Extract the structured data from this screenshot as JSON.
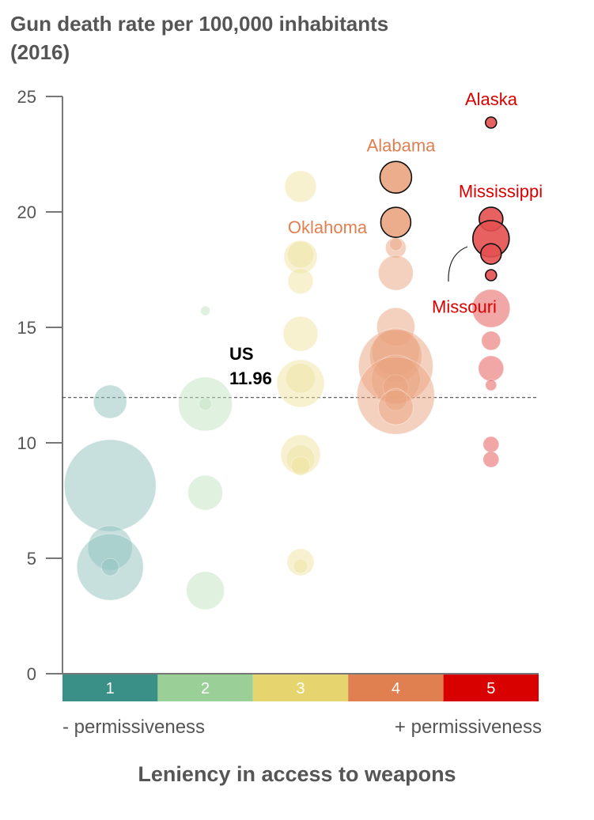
{
  "chart_data": {
    "type": "scatter",
    "title": "Gun death rate per 100,000 inhabitants (2016)",
    "xlabel": "Leniency in access to weapons",
    "ylabel": "Gun death rate per 100,000 inhabitants (2016)",
    "ylim": [
      0,
      25
    ],
    "yticks": [
      0,
      5,
      10,
      15,
      20,
      25
    ],
    "grid": false,
    "categories": [
      "1",
      "2",
      "3",
      "4",
      "5"
    ],
    "category_colors": [
      "#3a8f86",
      "#9bcf98",
      "#e6d46e",
      "#e07f50",
      "#d90000"
    ],
    "bubble_colors": [
      "#8fc1bd",
      "#c4e4c2",
      "#efe3a1",
      "#e9a47f",
      "#e55050"
    ],
    "x_left_note": "- permissiveness",
    "x_right_note": "+ permissiveness",
    "reference_line": {
      "label": "US",
      "value": 11.96,
      "value_label": "11.96"
    },
    "points": [
      {
        "category": 1,
        "y": 11.78,
        "size": 21
      },
      {
        "category": 1,
        "y": 8.15,
        "size": 58
      },
      {
        "category": 1,
        "y": 5.45,
        "size": 28
      },
      {
        "category": 1,
        "y": 4.62,
        "size": 42
      },
      {
        "category": 1,
        "y": 4.62,
        "size": 11
      },
      {
        "category": 2,
        "y": 15.72,
        "size": 6
      },
      {
        "category": 2,
        "y": 11.68,
        "size": 34
      },
      {
        "category": 2,
        "y": 11.68,
        "size": 8
      },
      {
        "category": 2,
        "y": 7.84,
        "size": 22
      },
      {
        "category": 2,
        "y": 3.6,
        "size": 24
      },
      {
        "category": 3,
        "y": 21.1,
        "size": 20
      },
      {
        "category": 3,
        "y": 18.05,
        "size": 21
      },
      {
        "category": 3,
        "y": 18.15,
        "size": 17
      },
      {
        "category": 3,
        "y": 17.0,
        "size": 16
      },
      {
        "category": 3,
        "y": 14.72,
        "size": 22
      },
      {
        "category": 3,
        "y": 12.57,
        "size": 30
      },
      {
        "category": 3,
        "y": 12.8,
        "size": 19
      },
      {
        "category": 3,
        "y": 9.49,
        "size": 25
      },
      {
        "category": 3,
        "y": 9.3,
        "size": 18
      },
      {
        "category": 3,
        "y": 9.0,
        "size": 12
      },
      {
        "category": 3,
        "y": 4.83,
        "size": 17
      },
      {
        "category": 3,
        "y": 4.66,
        "size": 9
      },
      {
        "category": 4,
        "y": 21.5,
        "size": 20,
        "highlight": true,
        "label": "Alabama"
      },
      {
        "category": 4,
        "y": 19.55,
        "size": 19,
        "highlight": true,
        "label": "Oklahoma"
      },
      {
        "category": 4,
        "y": 18.45,
        "size": 13
      },
      {
        "category": 4,
        "y": 18.6,
        "size": 8
      },
      {
        "category": 4,
        "y": 17.36,
        "size": 22
      },
      {
        "category": 4,
        "y": 15.03,
        "size": 24
      },
      {
        "category": 4,
        "y": 13.94,
        "size": 30
      },
      {
        "category": 4,
        "y": 13.77,
        "size": 33
      },
      {
        "category": 4,
        "y": 13.32,
        "size": 47
      },
      {
        "category": 4,
        "y": 12.74,
        "size": 31
      },
      {
        "category": 4,
        "y": 12.4,
        "size": 16
      },
      {
        "category": 4,
        "y": 12.05,
        "size": 49
      },
      {
        "category": 4,
        "y": 11.88,
        "size": 14
      },
      {
        "category": 4,
        "y": 11.54,
        "size": 22
      },
      {
        "category": 5,
        "y": 23.87,
        "size": 7,
        "highlight": true,
        "label": "Alaska"
      },
      {
        "category": 5,
        "y": 19.69,
        "size": 15,
        "highlight": true,
        "label": "Mississippi"
      },
      {
        "category": 5,
        "y": 18.84,
        "size": 23,
        "highlight": true,
        "label": "Missouri"
      },
      {
        "category": 5,
        "y": 18.18,
        "size": 13,
        "highlight": true
      },
      {
        "category": 5,
        "y": 17.26,
        "size": 7,
        "highlight": true
      },
      {
        "category": 5,
        "y": 15.82,
        "size": 24
      },
      {
        "category": 5,
        "y": 14.42,
        "size": 12
      },
      {
        "category": 5,
        "y": 13.22,
        "size": 16
      },
      {
        "category": 5,
        "y": 12.5,
        "size": 7
      },
      {
        "category": 5,
        "y": 9.93,
        "size": 10
      },
      {
        "category": 5,
        "y": 9.28,
        "size": 10
      }
    ],
    "annotations": [
      {
        "text": "Alaska",
        "category": 5,
        "y": 24.9,
        "color": "#d90000"
      },
      {
        "text": "Alabama",
        "category": 4,
        "y": 22.9,
        "color": "#e07f50"
      },
      {
        "text": "Mississippi",
        "category": 5,
        "y": 20.9,
        "color": "#d90000"
      },
      {
        "text": "Oklahoma",
        "category": 3,
        "y": 19.35,
        "color": "#e07f50"
      },
      {
        "text": "Missouri",
        "category": 5,
        "y": 15.9,
        "color": "#d90000"
      }
    ]
  }
}
